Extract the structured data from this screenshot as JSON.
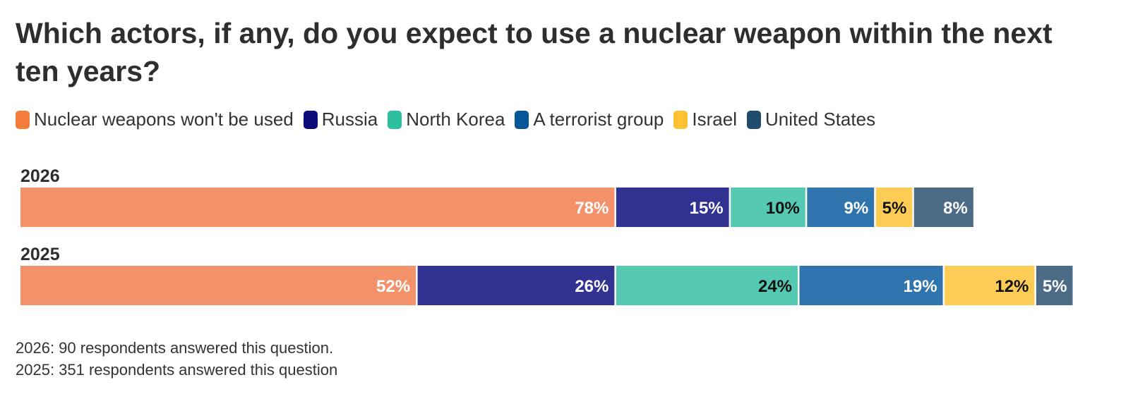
{
  "title": "Which actors, if any, do you expect to use a nuclear weapon within the next ten years?",
  "legend": [
    {
      "label": "Nuclear weapons won't be used",
      "color": "#F47C3C"
    },
    {
      "label": "Russia",
      "color": "#0A0A7A"
    },
    {
      "label": "North Korea",
      "color": "#2CBFA0"
    },
    {
      "label": "A terrorist group",
      "color": "#06569A"
    },
    {
      "label": "Israel",
      "color": "#FDC133"
    },
    {
      "label": "United States",
      "color": "#1F4B6E"
    }
  ],
  "chart_data": {
    "type": "bar",
    "orientation": "horizontal",
    "stacked": true,
    "categories": [
      "2026",
      "2025"
    ],
    "series": [
      {
        "name": "Nuclear weapons won't be used",
        "color": "#F3926A",
        "label_color": "#ffffff",
        "values": [
          78,
          52
        ],
        "labels": [
          "78%",
          "52%"
        ]
      },
      {
        "name": "Russia",
        "color": "#303392",
        "label_color": "#ffffff",
        "values": [
          15,
          26
        ],
        "labels": [
          "15%",
          "26%"
        ]
      },
      {
        "name": "North Korea",
        "color": "#55C9B1",
        "label_color": "#111111",
        "values": [
          10,
          24
        ],
        "labels": [
          "10%",
          "24%"
        ]
      },
      {
        "name": "A terrorist group",
        "color": "#2F74AC",
        "label_color": "#ffffff",
        "values": [
          9,
          19
        ],
        "labels": [
          "9%",
          "19%"
        ]
      },
      {
        "name": "Israel",
        "color": "#FDCC55",
        "label_color": "#111111",
        "values": [
          5,
          12
        ],
        "labels": [
          "5%",
          "12%"
        ]
      },
      {
        "name": "United States",
        "color": "#4C6B87",
        "label_color": "#ffffff",
        "values": [
          8,
          5
        ],
        "labels": [
          "8%",
          "5%"
        ]
      }
    ],
    "xlim": [
      0,
      138
    ],
    "grid": false,
    "legend_position": "top"
  },
  "footnotes": [
    "2026: 90 respondents answered this question.",
    "2025: 351 respondents answered this question"
  ]
}
